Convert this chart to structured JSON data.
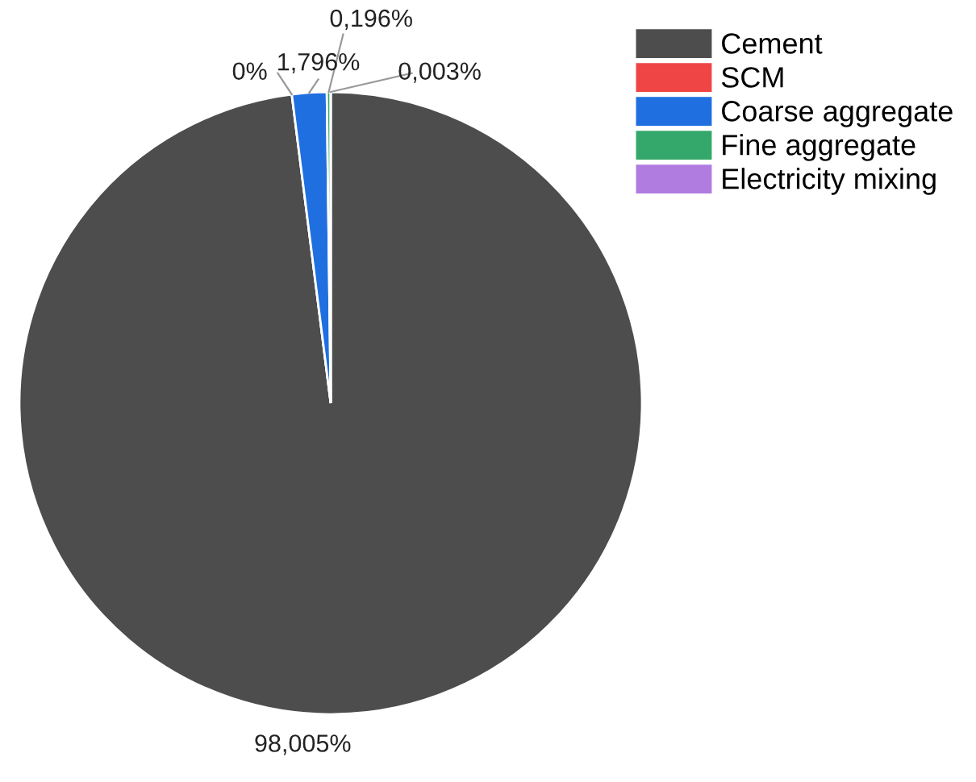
{
  "chart_data": {
    "type": "pie",
    "categories": [
      "Cement",
      "SCM",
      "Coarse aggregate",
      "Fine aggregate",
      "Electricity mixing"
    ],
    "values": [
      98.005,
      0,
      1.796,
      0.196,
      0.003
    ],
    "value_labels": [
      "98,005%",
      "0%",
      "1,796%",
      "0,196%",
      "0,003%"
    ],
    "colors": [
      "#4d4d4d",
      "#f04545",
      "#1f6fe0",
      "#34a86a",
      "#b07ce0"
    ],
    "legend": "top right"
  }
}
